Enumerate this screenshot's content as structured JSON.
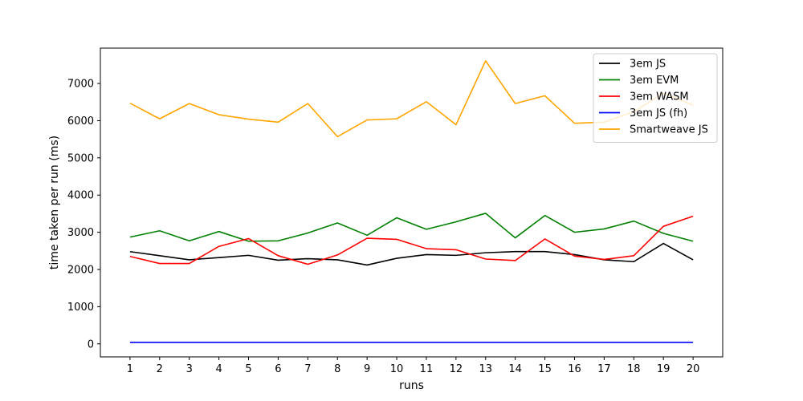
{
  "chart_data": {
    "type": "line",
    "xlabel": "runs",
    "ylabel": "time taken per run (ms)",
    "x": [
      1,
      2,
      3,
      4,
      5,
      6,
      7,
      8,
      9,
      10,
      11,
      12,
      13,
      14,
      15,
      16,
      17,
      18,
      19,
      20
    ],
    "xlim": [
      0,
      21
    ],
    "ylim": [
      -350,
      7950
    ],
    "yticks": [
      0,
      1000,
      2000,
      3000,
      4000,
      5000,
      6000,
      7000
    ],
    "grid": false,
    "legend_position": "top-right",
    "series": [
      {
        "name": "3em JS",
        "color": "#000000",
        "values": [
          2480,
          2370,
          2260,
          2320,
          2380,
          2250,
          2290,
          2260,
          2120,
          2300,
          2400,
          2380,
          2450,
          2480,
          2480,
          2400,
          2260,
          2210,
          2700,
          2260
        ]
      },
      {
        "name": "3em EVM",
        "color": "#008000",
        "values": [
          2870,
          3040,
          2770,
          3020,
          2760,
          2770,
          2980,
          3250,
          2920,
          3390,
          3080,
          3280,
          3510,
          2850,
          3450,
          3000,
          3090,
          3300,
          2970,
          2760
        ]
      },
      {
        "name": "3em WASM",
        "color": "#ff0000",
        "values": [
          2350,
          2160,
          2160,
          2620,
          2830,
          2370,
          2140,
          2390,
          2840,
          2810,
          2560,
          2530,
          2280,
          2240,
          2820,
          2360,
          2270,
          2370,
          3160,
          3430
        ]
      },
      {
        "name": "3em JS (fh)",
        "color": "#0000ff",
        "values": [
          40,
          40,
          40,
          40,
          40,
          40,
          40,
          40,
          40,
          40,
          40,
          40,
          40,
          40,
          40,
          40,
          40,
          40,
          40,
          40
        ]
      },
      {
        "name": "Smartweave JS",
        "color": "#ffa500",
        "values": [
          6470,
          6050,
          6460,
          6160,
          6040,
          5960,
          6460,
          5570,
          6020,
          6050,
          6510,
          5890,
          7610,
          6460,
          6670,
          5930,
          5960,
          6240,
          6740,
          6420
        ]
      }
    ]
  }
}
